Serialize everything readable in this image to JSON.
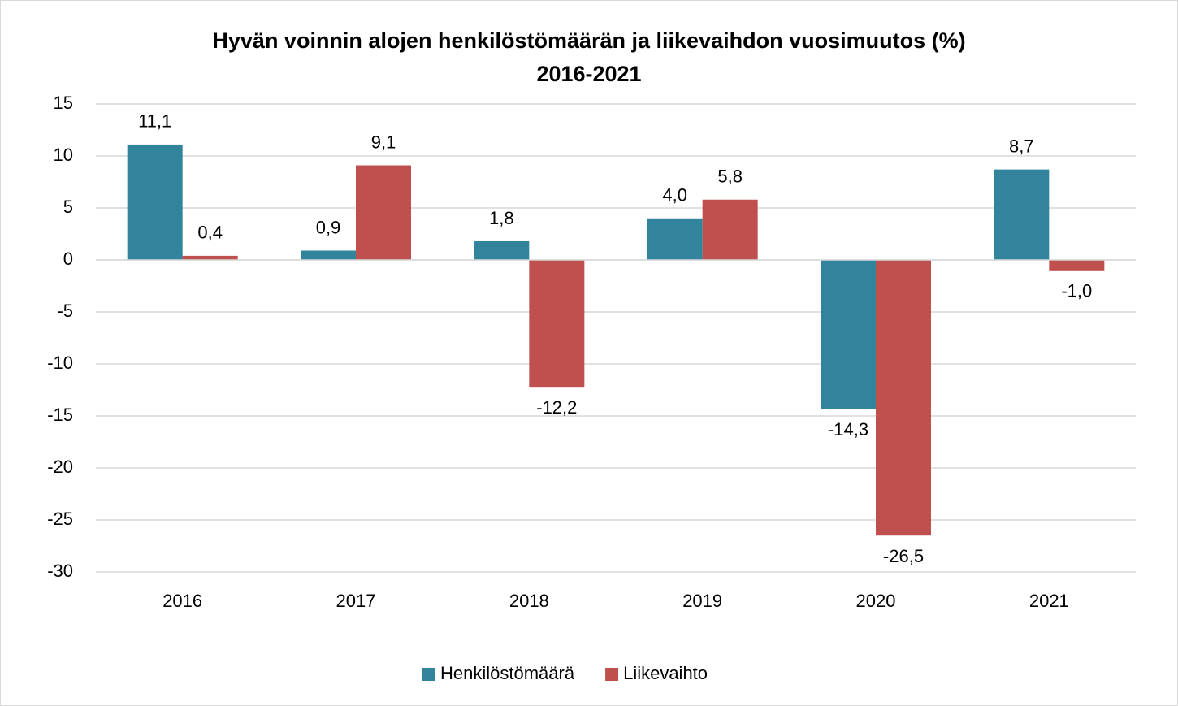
{
  "chart_data": {
    "type": "bar",
    "title": [
      "Hyvän voinnin alojen henkilöstömäärän ja liikevaihdon vuosimuutos (%)",
      "2016-2021"
    ],
    "categories": [
      "2016",
      "2017",
      "2018",
      "2019",
      "2020",
      "2021"
    ],
    "series": [
      {
        "name": "Henkilöstömäärä",
        "color": "#31849b",
        "values": [
          11.1,
          0.9,
          1.8,
          4.0,
          -14.3,
          8.7
        ],
        "value_labels": [
          "11,1",
          "0,9",
          "1,8",
          "4,0",
          "-14,3",
          "8,7"
        ]
      },
      {
        "name": "Liikevaihto",
        "color": "#c0504d",
        "values": [
          0.4,
          9.1,
          -12.2,
          5.8,
          -26.5,
          -1.0
        ],
        "value_labels": [
          "0,4",
          "9,1",
          "-12,2",
          "5,8",
          "-26,5",
          "-1,0"
        ]
      }
    ],
    "ylim": [
      -30,
      15
    ],
    "yticks": [
      -30,
      -25,
      -20,
      -15,
      -10,
      -5,
      0,
      5,
      10,
      15
    ],
    "grid": true,
    "legend": "bottom"
  }
}
